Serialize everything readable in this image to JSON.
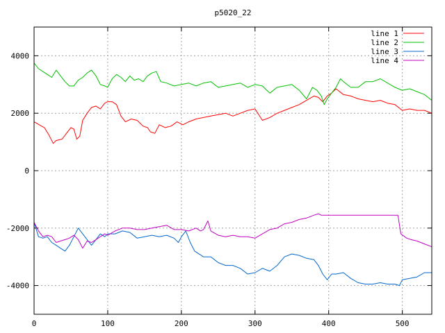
{
  "chart_data": {
    "type": "line",
    "title": "p5020_22",
    "xlabel": "",
    "ylabel": "",
    "xlim": [
      0,
      540
    ],
    "ylim": [
      -5000,
      5000
    ],
    "x_ticks": [
      0,
      100,
      200,
      300,
      400,
      500
    ],
    "y_ticks": [
      -4000,
      -2000,
      0,
      2000,
      4000
    ],
    "grid": true,
    "legend_position": "top-right",
    "series": [
      {
        "name": "line 1",
        "color": "#ff0000",
        "x": [
          0,
          8,
          14,
          20,
          26,
          30,
          38,
          44,
          50,
          54,
          58,
          62,
          66,
          72,
          78,
          84,
          90,
          96,
          100,
          106,
          112,
          118,
          124,
          132,
          140,
          148,
          154,
          158,
          164,
          170,
          178,
          186,
          194,
          202,
          210,
          220,
          230,
          240,
          250,
          260,
          270,
          280,
          290,
          300,
          310,
          320,
          330,
          340,
          350,
          360,
          370,
          380,
          386,
          392,
          398,
          404,
          410,
          420,
          430,
          440,
          450,
          460,
          470,
          480,
          490,
          500,
          510,
          520,
          530,
          540
        ],
        "y": [
          1700,
          1580,
          1500,
          1250,
          950,
          1050,
          1100,
          1300,
          1500,
          1450,
          1100,
          1200,
          1750,
          2000,
          2200,
          2250,
          2150,
          2350,
          2400,
          2400,
          2300,
          1900,
          1700,
          1800,
          1750,
          1550,
          1500,
          1350,
          1300,
          1600,
          1500,
          1550,
          1700,
          1600,
          1700,
          1800,
          1850,
          1900,
          1950,
          2000,
          1900,
          2000,
          2100,
          2150,
          1750,
          1850,
          2000,
          2100,
          2200,
          2300,
          2450,
          2600,
          2550,
          2400,
          2600,
          2700,
          2850,
          2650,
          2600,
          2500,
          2450,
          2400,
          2450,
          2350,
          2300,
          2100,
          2150,
          2100,
          2100,
          2000
        ]
      },
      {
        "name": "line 2",
        "color": "#00c000",
        "x": [
          0,
          6,
          12,
          18,
          24,
          30,
          36,
          42,
          48,
          54,
          60,
          66,
          72,
          78,
          84,
          90,
          96,
          100,
          106,
          112,
          118,
          124,
          130,
          136,
          142,
          148,
          154,
          160,
          166,
          172,
          180,
          190,
          200,
          210,
          220,
          230,
          240,
          250,
          260,
          270,
          280,
          290,
          300,
          310,
          320,
          330,
          340,
          350,
          360,
          370,
          378,
          384,
          390,
          394,
          398,
          404,
          410,
          416,
          420,
          430,
          440,
          450,
          460,
          470,
          480,
          490,
          500,
          510,
          520,
          530,
          540
        ],
        "y": [
          3750,
          3550,
          3450,
          3350,
          3250,
          3500,
          3300,
          3100,
          2950,
          2950,
          3150,
          3250,
          3400,
          3500,
          3300,
          3000,
          2950,
          2900,
          3200,
          3350,
          3250,
          3100,
          3300,
          3150,
          3200,
          3100,
          3300,
          3400,
          3450,
          3100,
          3050,
          2950,
          3000,
          3050,
          2950,
          3050,
          3100,
          2900,
          2950,
          3000,
          3050,
          2900,
          3000,
          2950,
          2700,
          2900,
          2950,
          3000,
          2800,
          2500,
          2900,
          2800,
          2600,
          2300,
          2500,
          2700,
          2900,
          3200,
          3100,
          2900,
          2900,
          3100,
          3100,
          3200,
          3050,
          2900,
          2800,
          2850,
          2750,
          2650,
          2450
        ]
      },
      {
        "name": "line 3",
        "color": "#0066cc",
        "x": [
          0,
          6,
          12,
          18,
          24,
          30,
          36,
          42,
          48,
          54,
          60,
          66,
          72,
          78,
          84,
          90,
          96,
          100,
          110,
          120,
          130,
          140,
          150,
          160,
          170,
          180,
          190,
          196,
          200,
          206,
          212,
          218,
          224,
          230,
          240,
          250,
          260,
          270,
          280,
          290,
          300,
          310,
          320,
          330,
          340,
          350,
          360,
          370,
          380,
          386,
          392,
          398,
          404,
          410,
          420,
          430,
          440,
          450,
          460,
          470,
          480,
          490,
          496,
          500,
          510,
          520,
          530,
          540
        ],
        "y": [
          -1800,
          -2300,
          -2350,
          -2300,
          -2500,
          -2600,
          -2700,
          -2800,
          -2600,
          -2300,
          -2000,
          -2200,
          -2400,
          -2600,
          -2400,
          -2200,
          -2300,
          -2200,
          -2200,
          -2100,
          -2150,
          -2350,
          -2300,
          -2250,
          -2300,
          -2250,
          -2350,
          -2500,
          -2300,
          -2100,
          -2500,
          -2800,
          -2900,
          -3000,
          -3000,
          -3200,
          -3300,
          -3300,
          -3400,
          -3600,
          -3550,
          -3400,
          -3500,
          -3300,
          -3000,
          -2900,
          -2950,
          -3050,
          -3100,
          -3300,
          -3600,
          -3800,
          -3600,
          -3600,
          -3550,
          -3750,
          -3900,
          -3950,
          -3950,
          -3900,
          -3950,
          -3950,
          -4000,
          -3800,
          -3750,
          -3700,
          -3550,
          -3550
        ]
      },
      {
        "name": "line 4",
        "color": "#c000c0",
        "x": [
          0,
          6,
          12,
          18,
          24,
          30,
          36,
          42,
          48,
          54,
          60,
          66,
          72,
          78,
          84,
          90,
          96,
          100,
          110,
          120,
          130,
          140,
          150,
          160,
          170,
          180,
          190,
          200,
          210,
          220,
          226,
          230,
          236,
          240,
          250,
          260,
          270,
          280,
          290,
          300,
          310,
          320,
          330,
          340,
          350,
          360,
          370,
          380,
          386,
          390,
          400,
          450,
          494,
          498,
          506,
          512,
          520,
          530,
          540
        ],
        "y": [
          -1800,
          -2100,
          -2300,
          -2250,
          -2300,
          -2500,
          -2450,
          -2400,
          -2350,
          -2250,
          -2400,
          -2700,
          -2450,
          -2500,
          -2400,
          -2300,
          -2200,
          -2250,
          -2100,
          -2000,
          -2000,
          -2050,
          -2050,
          -2000,
          -1950,
          -1900,
          -2050,
          -2050,
          -2100,
          -2000,
          -2100,
          -2050,
          -1750,
          -2100,
          -2250,
          -2300,
          -2250,
          -2300,
          -2300,
          -2350,
          -2200,
          -2050,
          -2000,
          -1850,
          -1800,
          -1700,
          -1650,
          -1550,
          -1500,
          -1550,
          -1550,
          -1550,
          -1550,
          -2200,
          -2350,
          -2400,
          -2450,
          -2550,
          -2650
        ]
      }
    ]
  }
}
